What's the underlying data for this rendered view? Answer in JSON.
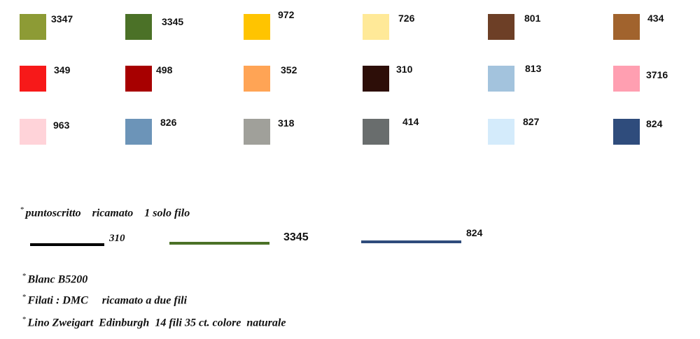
{
  "swatches": [
    {
      "code": "3347",
      "color": "#8d9b35"
    },
    {
      "code": "3345",
      "color": "#4b7127"
    },
    {
      "code": "972",
      "color": "#ffc400"
    },
    {
      "code": "726",
      "color": "#ffe998"
    },
    {
      "code": "801",
      "color": "#6d3f26"
    },
    {
      "code": "434",
      "color": "#a1632d"
    },
    {
      "code": "349",
      "color": "#f71919"
    },
    {
      "code": "498",
      "color": "#a70000"
    },
    {
      "code": "352",
      "color": "#ffa455"
    },
    {
      "code": "310",
      "color": "#2d0e08"
    },
    {
      "code": "813",
      "color": "#a3c3dd"
    },
    {
      "code": "3716",
      "color": "#ff9fb1"
    },
    {
      "code": "963",
      "color": "#ffd3d9"
    },
    {
      "code": "826",
      "color": "#6c94b8"
    },
    {
      "code": "318",
      "color": "#a0a09a"
    },
    {
      "code": "414",
      "color": "#696d6d"
    },
    {
      "code": "827",
      "color": "#d4ebfb"
    },
    {
      "code": "824",
      "color": "#2f4c7c"
    }
  ],
  "notes": {
    "star": "*",
    "backstitch_text": "puntoscritto    ricamato    1 solo filo",
    "blanc_text": "Blanc B5200",
    "threads_text": "Filati : DMC     ricamato a due fili",
    "linen_text": "Lino Zweigart  Edinburgh  14 fili 35 ct. colore  naturale"
  },
  "backstitch_lines": [
    {
      "code": "310",
      "color": "#000000"
    },
    {
      "code": "3345",
      "color": "#4b7127"
    },
    {
      "code": "824",
      "color": "#2f4c7c"
    }
  ]
}
